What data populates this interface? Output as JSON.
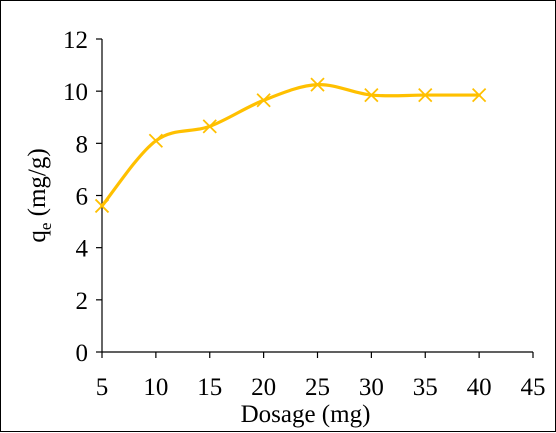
{
  "chart_data": {
    "type": "line",
    "title": "",
    "xlabel": "Dosage (mg)",
    "ylabel": {
      "main": "q",
      "sub": "e",
      "unit": " (mg/g)"
    },
    "x": [
      5,
      10,
      15,
      20,
      25,
      30,
      35,
      40
    ],
    "series": [
      {
        "values": [
          5.6,
          8.1,
          8.65,
          9.65,
          10.25,
          9.85,
          9.85,
          9.85
        ],
        "color": "#FFC000",
        "marker": "x",
        "smooth": true
      }
    ],
    "xlim": [
      5,
      45
    ],
    "ylim": [
      0,
      12
    ],
    "xticks": [
      5,
      10,
      15,
      20,
      25,
      30,
      35,
      40,
      45
    ],
    "yticks": [
      0,
      2,
      4,
      6,
      8,
      10,
      12
    ],
    "grid": false,
    "legend": "none"
  }
}
